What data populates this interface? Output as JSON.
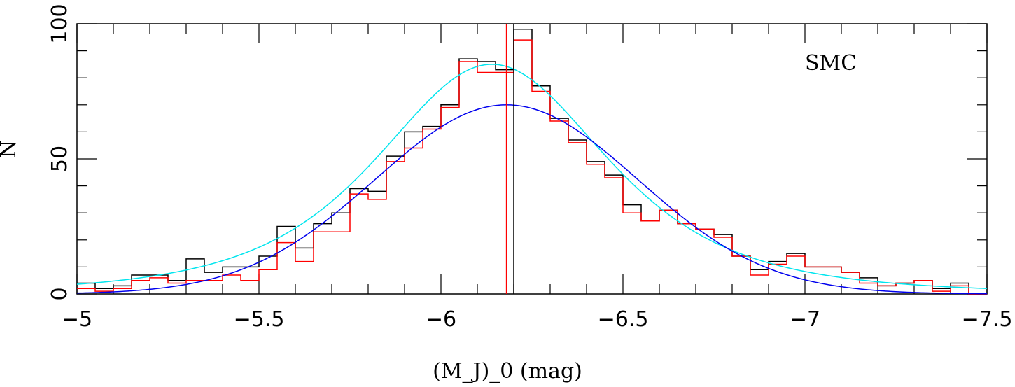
{
  "chart_data": {
    "type": "histogram",
    "xlabel": "(M_J)_0 (mag)",
    "xlabel_main": "(M",
    "xlabel_sub1": "J",
    "xlabel_mid": ")",
    "xlabel_sub2": "0",
    "xlabel_unit": " (mag)",
    "ylabel": "N",
    "annotation": "SMC",
    "xlim": [
      -5,
      -7.5
    ],
    "ylim": [
      0,
      100
    ],
    "x_ticks": [
      -5,
      -5.5,
      -6,
      -6.5,
      -7,
      -7.5
    ],
    "x_tick_labels": [
      "−5",
      "−5.5",
      "−6",
      "−6.5",
      "−7",
      "−7.5"
    ],
    "y_ticks": [
      0,
      50,
      100
    ],
    "y_tick_labels": [
      "0",
      "50",
      "100"
    ],
    "bin_start": -5.0,
    "bin_width": 0.05,
    "series": [
      {
        "color": "#000000",
        "type": "step",
        "values": [
          4,
          2,
          3,
          7,
          7,
          5,
          13,
          8,
          10,
          10,
          14,
          25,
          17,
          26,
          30,
          39,
          38,
          51,
          60,
          62,
          70,
          87,
          86,
          83,
          98,
          77,
          65,
          57,
          49,
          44,
          33,
          27,
          31,
          26,
          24,
          22,
          14,
          9,
          12,
          15,
          10,
          10,
          8,
          6,
          3,
          4,
          5,
          2,
          4,
          0
        ]
      },
      {
        "color": "#ff0000",
        "type": "step",
        "values": [
          2,
          1,
          2,
          5,
          6,
          4,
          5,
          5,
          7,
          5,
          9,
          19,
          12,
          23,
          23,
          37,
          35,
          49,
          54,
          61,
          69,
          86,
          82,
          82,
          94,
          75,
          64,
          56,
          48,
          43,
          30,
          27,
          31,
          26,
          24,
          21,
          14,
          7,
          11,
          14,
          10,
          10,
          8,
          4,
          3,
          4,
          5,
          1,
          3,
          0
        ]
      },
      {
        "color": "#00e5ee",
        "type": "curve",
        "model": "moffat",
        "amplitude": 85,
        "center": -6.14,
        "alpha": 0.58,
        "beta": 2
      },
      {
        "color": "#0000ee",
        "type": "curve",
        "model": "gaussian",
        "amplitude": 70,
        "center": -6.18,
        "sigma": 0.36
      }
    ],
    "vertical_lines": [
      {
        "color": "#ff0000",
        "x": -6.18
      },
      {
        "color": "#000000",
        "x": -6.2
      }
    ],
    "grid": false,
    "legend": "none"
  }
}
